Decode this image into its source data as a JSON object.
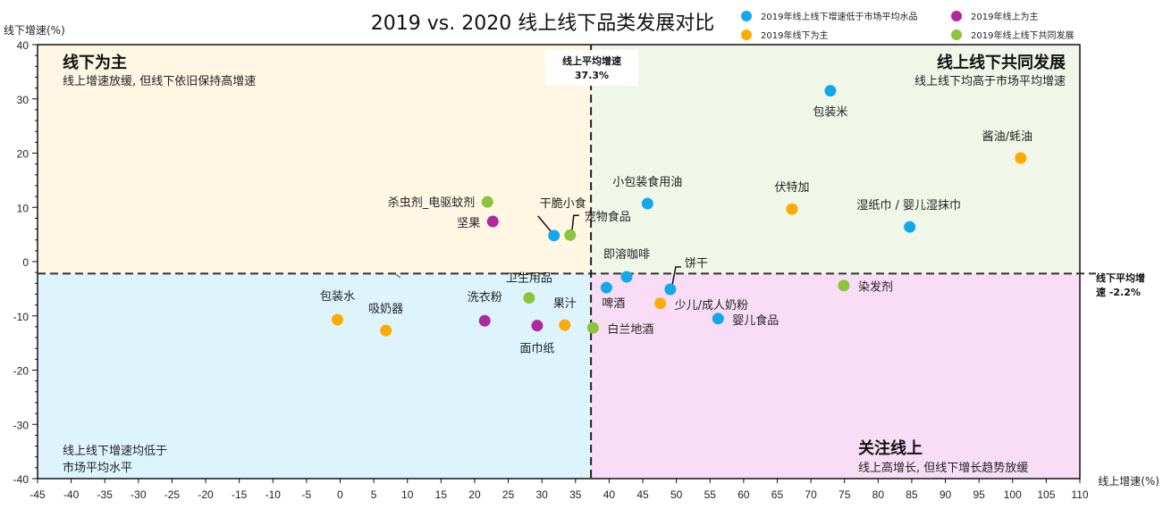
{
  "chart_data": {
    "type": "scatter",
    "title": "2019 vs. 2020 线上线下品类发展对比",
    "xlabel": "线上增速(%)",
    "ylabel": "线下增速(%)",
    "xlim": [
      -45,
      110
    ],
    "ylim": [
      -40,
      40
    ],
    "xticks": [
      -45,
      -40,
      -35,
      -30,
      -25,
      -20,
      -15,
      -10,
      -5,
      0,
      5,
      10,
      15,
      20,
      25,
      30,
      35,
      40,
      45,
      50,
      55,
      60,
      65,
      70,
      75,
      80,
      85,
      90,
      95,
      100,
      105,
      110
    ],
    "yticks": [
      -40,
      -30,
      -20,
      -10,
      0,
      10,
      20,
      30,
      40
    ],
    "grid": false,
    "legend_position": "top-right",
    "series": [
      {
        "name": "2019年线上线下增速低于市场平均水品",
        "color": "#12A9EC"
      },
      {
        "name": "2019年线上为主",
        "color": "#B0279E"
      },
      {
        "name": "2019年线下为主",
        "color": "#FFAA00"
      },
      {
        "name": "2019年线上线下共同发展",
        "color": "#8CC43E"
      }
    ],
    "reference_lines": {
      "x": {
        "value": 37.3,
        "label_title": "线上平均增速",
        "label_value": "37.3%"
      },
      "y": {
        "value": -2.2,
        "label_title": "线下平均增",
        "label_value": "速 -2.2%"
      }
    },
    "quadrants": [
      {
        "id": "top-left",
        "title": "线下为主",
        "subtitle": "线上增速放缓, 但线下依旧保持高增速",
        "color": "#FFF6E3"
      },
      {
        "id": "top-right",
        "title": "线上线下共同发展",
        "subtitle": "线上线下均高于市场平均增速",
        "color": "#F1F7E8"
      },
      {
        "id": "bottom-left",
        "title": "",
        "subtitle": "线上线下增速均低于",
        "subtitle2": "市场平均水平",
        "color": "#DDF4FD"
      },
      {
        "id": "bottom-right",
        "title": "关注线上",
        "subtitle": "线上高增长, 但线下增长趋势放缓",
        "color": "#F9DDF6"
      }
    ],
    "points": [
      {
        "label": "包装米",
        "x": 72.9,
        "y": 31.5,
        "series": 0
      },
      {
        "label": "酱油/蚝油",
        "x": 101.2,
        "y": 19.1,
        "series": 2
      },
      {
        "label": "伏特加",
        "x": 67.2,
        "y": 9.7,
        "series": 2
      },
      {
        "label": "湿纸巾 / 婴儿湿抹巾",
        "x": 84.7,
        "y": 6.4,
        "series": 0
      },
      {
        "label": "小包装食用油",
        "x": 45.7,
        "y": 10.7,
        "series": 0
      },
      {
        "label": "杀虫剂_电驱蚊剂",
        "x": 21.9,
        "y": 11.0,
        "series": 3
      },
      {
        "label": "坚果",
        "x": 22.7,
        "y": 7.4,
        "series": 1
      },
      {
        "label": "干脆小食",
        "x": 31.8,
        "y": 4.8,
        "series": 0
      },
      {
        "label": "宠物食品",
        "x": 34.2,
        "y": 4.9,
        "series": 3
      },
      {
        "label": "即溶咖啡",
        "x": 42.6,
        "y": -2.8,
        "series": 0
      },
      {
        "label": "啤酒",
        "x": 39.6,
        "y": -4.8,
        "series": 0
      },
      {
        "label": "饼干",
        "x": 49.1,
        "y": -5.1,
        "series": 0
      },
      {
        "label": "少儿/成人奶粉",
        "x": 47.6,
        "y": -7.7,
        "series": 2
      },
      {
        "label": "婴儿食品",
        "x": 56.2,
        "y": -10.5,
        "series": 0
      },
      {
        "label": "白兰地酒",
        "x": 37.6,
        "y": -12.2,
        "series": 3
      },
      {
        "label": "染发剂",
        "x": 74.9,
        "y": -4.4,
        "series": 3
      },
      {
        "label": "包装水",
        "x": -0.4,
        "y": -10.7,
        "series": 2
      },
      {
        "label": "吸奶器",
        "x": 6.8,
        "y": -12.7,
        "series": 2
      },
      {
        "label": "洗衣粉",
        "x": 21.5,
        "y": -10.9,
        "series": 1
      },
      {
        "label": "卫生用品",
        "x": 28.1,
        "y": -6.7,
        "series": 3
      },
      {
        "label": "面巾纸",
        "x": 29.3,
        "y": -11.8,
        "series": 1
      },
      {
        "label": "果汁",
        "x": 33.4,
        "y": -11.7,
        "series": 2
      }
    ]
  }
}
